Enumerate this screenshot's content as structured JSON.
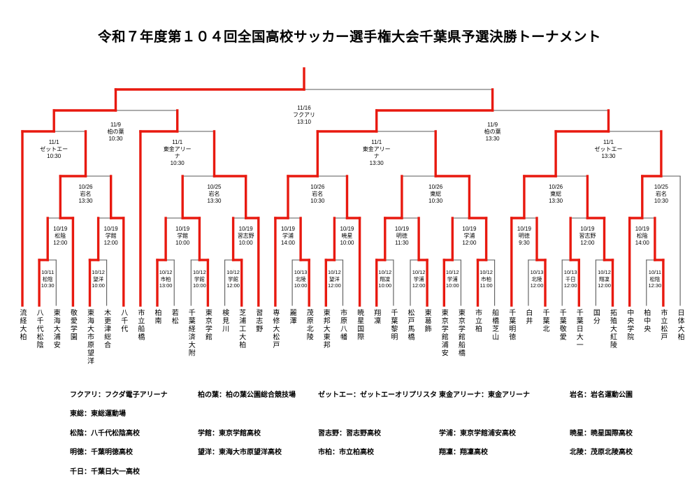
{
  "title": "令和７年度第１０４回全国高校サッカー選手権大会千葉県予選決勝トーナメント",
  "colors": {
    "winner_path": "#e8190f",
    "line": "#5a5a5a"
  },
  "bracket": {
    "teams": [
      "流経大柏",
      "八千代松陰",
      "東海大浦安",
      "敬愛学園",
      "東海大市原望洋",
      "木更津総合",
      "八千代",
      "市立船橋",
      "柏南",
      "若松",
      "千葉経済大附",
      "東京学館",
      "検見川",
      "芝浦工大柏",
      "習志野",
      "専修大松戸",
      "麗澤",
      "茂原北陵",
      "東邦大東邦",
      "市原八幡",
      "暁星国際",
      "翔凜",
      "千葉黎明",
      "松戸馬橋",
      "東葛飾",
      "東京学館浦安",
      "東京学館船橋",
      "市立柏",
      "船橋芝山",
      "千葉明徳",
      "白井",
      "千葉北",
      "千葉敬愛",
      "千葉日大一",
      "国分",
      "拓殖大紅陵",
      "中央学院",
      "柏中央",
      "市立松戸",
      "日体大柏"
    ],
    "matches": [
      {
        "id": "M1",
        "round": "r1",
        "date": "10/11",
        "venue": "松陰",
        "time": "10:30",
        "home": "t2",
        "away": "t3",
        "winner": "home"
      },
      {
        "id": "M2",
        "round": "r1",
        "date": "10/12",
        "venue": "望洋",
        "time": "10:00",
        "home": "t5",
        "away": "t6",
        "winner": "home"
      },
      {
        "id": "M3",
        "round": "r1",
        "date": "10/12",
        "venue": "市柏",
        "time": "13:00",
        "home": "t9",
        "away": "t10",
        "winner": "home"
      },
      {
        "id": "M4",
        "round": "r1",
        "date": "10/12",
        "venue": "学館",
        "time": "10:00",
        "home": "t11",
        "away": "t12",
        "winner": "away"
      },
      {
        "id": "M5",
        "round": "r1",
        "date": "10/12",
        "venue": "学館",
        "time": "12:00",
        "home": "t13",
        "away": "t14",
        "winner": "away"
      },
      {
        "id": "M6",
        "round": "r1",
        "date": "10/13",
        "venue": "北陵",
        "time": "10:00",
        "home": "t17",
        "away": "t18",
        "winner": "away"
      },
      {
        "id": "M7",
        "round": "r1",
        "date": "10/12",
        "venue": "望洋",
        "time": "12:00",
        "home": "t19",
        "away": "t20",
        "winner": "home"
      },
      {
        "id": "M8",
        "round": "r1",
        "date": "10/12",
        "venue": "翔凜",
        "time": "10:00",
        "home": "t22",
        "away": "t23",
        "winner": "home"
      },
      {
        "id": "M9",
        "round": "r1",
        "date": "10/12",
        "venue": "学浦",
        "time": "12:00",
        "home": "t24",
        "away": "t25",
        "winner": "away"
      },
      {
        "id": "M10",
        "round": "r1",
        "date": "10/12",
        "venue": "学浦",
        "time": "10:00",
        "home": "t26",
        "away": "t27",
        "winner": "home"
      },
      {
        "id": "M11",
        "round": "r1",
        "date": "10/12",
        "venue": "市柏",
        "time": "11:00",
        "home": "t28",
        "away": "t29",
        "winner": "home"
      },
      {
        "id": "M12",
        "round": "r1",
        "date": "10/13",
        "venue": "北陵",
        "time": "12:00",
        "home": "t31",
        "away": "t32",
        "winner": "away"
      },
      {
        "id": "M13",
        "round": "r1",
        "date": "10/13",
        "venue": "千日",
        "time": "12:00",
        "home": "t33",
        "away": "t34",
        "winner": "away"
      },
      {
        "id": "M14",
        "round": "r1",
        "date": "10/12",
        "venue": "翔凜",
        "time": "12:00",
        "home": "t35",
        "away": "t36",
        "winner": "away"
      },
      {
        "id": "M15",
        "round": "r1",
        "date": "10/11",
        "venue": "松陰",
        "time": "12:30",
        "home": "t38",
        "away": "t39",
        "winner": "away"
      },
      {
        "id": "A1",
        "round": "a",
        "date": "10/19",
        "venue": "松陰",
        "time": "12:00",
        "home": "M1",
        "away": "t4",
        "winner": "away"
      },
      {
        "id": "A2",
        "round": "a",
        "date": "10/19",
        "venue": "学館",
        "time": "12:00",
        "home": "M2",
        "away": "t7",
        "winner": "away"
      },
      {
        "id": "A3",
        "round": "a",
        "date": "10/19",
        "venue": "学館",
        "time": "10:00",
        "home": "M3",
        "away": "M4",
        "winner": "away"
      },
      {
        "id": "A4",
        "round": "a",
        "date": "10/19",
        "venue": "習志野",
        "time": "10:00",
        "home": "M5",
        "away": "t15",
        "winner": "away"
      },
      {
        "id": "A5",
        "round": "a",
        "date": "10/19",
        "venue": "学浦",
        "time": "14:00",
        "home": "t16",
        "away": "M6",
        "winner": "home"
      },
      {
        "id": "A6",
        "round": "a",
        "date": "10/19",
        "venue": "暁星",
        "time": "10:00",
        "home": "M7",
        "away": "t21",
        "winner": "away"
      },
      {
        "id": "A7",
        "round": "a",
        "date": "10/19",
        "venue": "明徳",
        "time": "11:30",
        "home": "M8",
        "away": "M9",
        "winner": "home"
      },
      {
        "id": "A8",
        "round": "a",
        "date": "10/19",
        "venue": "学浦",
        "time": "12:00",
        "home": "M10",
        "away": "M11",
        "winner": "away"
      },
      {
        "id": "A9",
        "round": "a",
        "date": "10/19",
        "venue": "明徳",
        "time": "9:30",
        "home": "t30",
        "away": "M12",
        "winner": "home"
      },
      {
        "id": "A10",
        "round": "a",
        "date": "10/19",
        "venue": "習志野",
        "time": "12:00",
        "home": "M13",
        "away": "M14",
        "winner": "away"
      },
      {
        "id": "A11",
        "round": "a",
        "date": "10/19",
        "venue": "松陰",
        "time": "14:00",
        "home": "t37",
        "away": "M15",
        "winner": "home"
      },
      {
        "id": "B1",
        "round": "b",
        "date": "10/26",
        "venue": "岩名",
        "time": "13:30",
        "home": "A1",
        "away": "A2",
        "winner": "home"
      },
      {
        "id": "B2",
        "round": "b",
        "date": "10/25",
        "venue": "岩名",
        "time": "13:30",
        "home": "A3",
        "away": "A4",
        "winner": "away"
      },
      {
        "id": "B3",
        "round": "b",
        "date": "10/26",
        "venue": "岩名",
        "time": "10:30",
        "home": "A5",
        "away": "A6",
        "winner": "home"
      },
      {
        "id": "B4",
        "round": "b",
        "date": "10/26",
        "venue": "東総",
        "time": "10:30",
        "home": "A7",
        "away": "A8",
        "winner": "away"
      },
      {
        "id": "B5",
        "round": "b",
        "date": "10/26",
        "venue": "東総",
        "time": "13:30",
        "home": "A9",
        "away": "A10",
        "winner": "home"
      },
      {
        "id": "B6",
        "round": "b",
        "date": "10/25",
        "venue": "岩名",
        "time": "10:30",
        "home": "A11",
        "away": "t40",
        "winner": "home"
      },
      {
        "id": "C1",
        "round": "c",
        "date": "11/1",
        "venue": "ゼットエー",
        "time": "10:30",
        "home": "t1",
        "away": "B1",
        "winner": "home"
      },
      {
        "id": "C2",
        "round": "c",
        "date": "11/1",
        "venue": "東金アリーナ",
        "time": "10:30",
        "home": "t8",
        "away": "B2",
        "winner": "home"
      },
      {
        "id": "C3",
        "round": "c",
        "date": "11/1",
        "venue": "東金アリーナ",
        "time": "13:30",
        "home": "B3",
        "away": "B4",
        "winner": "home"
      },
      {
        "id": "C4",
        "round": "c",
        "date": "11/1",
        "venue": "ゼットエー",
        "time": "13:30",
        "home": "B5",
        "away": "B6",
        "winner": "home"
      },
      {
        "id": "SF1",
        "round": "sf",
        "date": "11/9",
        "venue": "柏の葉",
        "time": "10:30",
        "home": "C1",
        "away": "C2",
        "winner": "home"
      },
      {
        "id": "SF2",
        "round": "sf",
        "date": "11/9",
        "venue": "柏の葉",
        "time": "13:30",
        "home": "C3",
        "away": "C4",
        "winner": "home"
      },
      {
        "id": "F",
        "round": "f",
        "date": "11/16",
        "venue": "フクアリ",
        "time": "13:10",
        "home": "SF1",
        "away": "SF2",
        "winner": "home"
      }
    ]
  },
  "legend": {
    "rows": [
      [
        "フクアリ：フクダ電子アリーナ",
        "柏の葉：柏の葉公園総合競技場",
        "ゼットエー：ゼットエーオリプリスタ",
        "東金アリーナ：東金アリーナ",
        "岩名：岩名運動公園"
      ],
      [
        "東総：東総運動場"
      ],
      [
        "松陰：八千代松陰高校",
        "学館：東京学館高校",
        "習志野：習志野高校",
        "学浦：東京学館浦安高校",
        "暁星：暁星国際高校"
      ],
      [
        "明徳：千葉明徳高校",
        "望洋：東海大市原望洋高校",
        "市柏：市立柏高校",
        "翔凜：翔凜高校",
        "北陵：茂原北陵高校"
      ],
      [
        "千日：千葉日大一高校"
      ]
    ]
  }
}
